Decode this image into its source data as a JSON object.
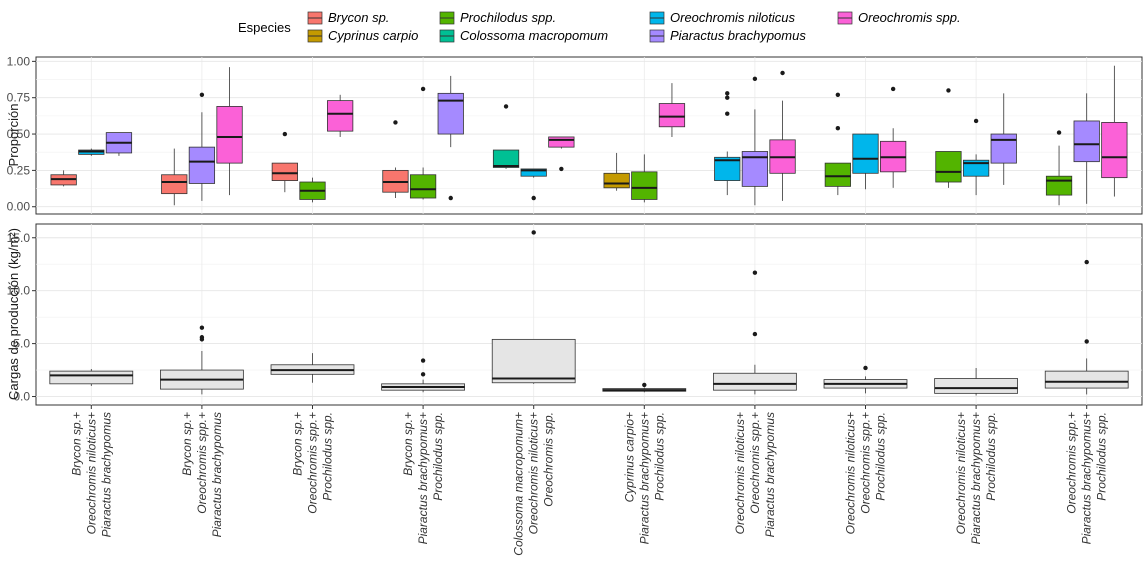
{
  "chart_data": [
    {
      "type": "boxplot",
      "panel": "top",
      "ylabel": "Proporción",
      "ylim": [
        0,
        1
      ],
      "yticks": [
        "0.00",
        "0.25",
        "0.50",
        "0.75",
        "1.00"
      ],
      "grid": true,
      "legend": {
        "title": "Especies",
        "placement": "top",
        "entries": [
          {
            "name": "Brycon sp.",
            "color": "#f8766d"
          },
          {
            "name": "Cyprinus carpio",
            "color": "#c49a00"
          },
          {
            "name": "Prochilodus spp.",
            "color": "#53b400"
          },
          {
            "name": "Colossoma macropomum",
            "color": "#00c094"
          },
          {
            "name": "Oreochromis niloticus",
            "color": "#00b6eb"
          },
          {
            "name": "Piaractus brachypomus",
            "color": "#a58aff"
          },
          {
            "name": "Oreochromis spp.",
            "color": "#fb61d7"
          }
        ]
      },
      "groups": [
        {
          "boxes": [
            {
              "species": 0,
              "stats": [
                0.14,
                0.15,
                0.19,
                0.22,
                0.25
              ],
              "outliers": []
            },
            {
              "species": 4,
              "stats": [
                0.35,
                0.36,
                0.38,
                0.39,
                0.4
              ],
              "outliers": []
            },
            {
              "species": 5,
              "stats": [
                0.35,
                0.37,
                0.44,
                0.51,
                0.51
              ],
              "outliers": []
            }
          ]
        },
        {
          "boxes": [
            {
              "species": 0,
              "stats": [
                0.01,
                0.09,
                0.17,
                0.22,
                0.4
              ],
              "outliers": []
            },
            {
              "species": 5,
              "stats": [
                0.04,
                0.16,
                0.31,
                0.41,
                0.65
              ],
              "outliers": [
                0.77
              ]
            },
            {
              "species": 6,
              "stats": [
                0.08,
                0.3,
                0.48,
                0.69,
                0.96
              ],
              "outliers": []
            }
          ]
        },
        {
          "boxes": [
            {
              "species": 0,
              "stats": [
                0.1,
                0.18,
                0.23,
                0.3,
                0.3
              ],
              "outliers": [
                0.5
              ]
            },
            {
              "species": 2,
              "stats": [
                0.03,
                0.05,
                0.11,
                0.17,
                0.2
              ],
              "outliers": []
            },
            {
              "species": 6,
              "stats": [
                0.48,
                0.52,
                0.64,
                0.73,
                0.77
              ],
              "outliers": []
            }
          ]
        },
        {
          "boxes": [
            {
              "species": 0,
              "stats": [
                0.06,
                0.1,
                0.17,
                0.25,
                0.27
              ],
              "outliers": [
                0.58
              ]
            },
            {
              "species": 2,
              "stats": [
                0.05,
                0.06,
                0.12,
                0.22,
                0.27
              ],
              "outliers": [
                0.81
              ]
            },
            {
              "species": 5,
              "stats": [
                0.41,
                0.5,
                0.73,
                0.78,
                0.9
              ],
              "outliers": [
                0.06
              ]
            }
          ]
        },
        {
          "boxes": [
            {
              "species": 3,
              "stats": [
                0.26,
                0.27,
                0.28,
                0.39,
                0.39
              ],
              "outliers": [
                0.69
              ]
            },
            {
              "species": 4,
              "stats": [
                0.2,
                0.21,
                0.25,
                0.26,
                0.26
              ],
              "outliers": [
                0.06
              ]
            },
            {
              "species": 6,
              "stats": [
                0.4,
                0.41,
                0.46,
                0.48,
                0.48
              ],
              "outliers": [
                0.26
              ]
            }
          ]
        },
        {
          "boxes": [
            {
              "species": 1,
              "stats": [
                0.11,
                0.13,
                0.16,
                0.23,
                0.37
              ],
              "outliers": []
            },
            {
              "species": 2,
              "stats": [
                0.03,
                0.05,
                0.13,
                0.24,
                0.36
              ],
              "outliers": []
            },
            {
              "species": 6,
              "stats": [
                0.48,
                0.55,
                0.62,
                0.71,
                0.85
              ],
              "outliers": []
            }
          ]
        },
        {
          "boxes": [
            {
              "species": 4,
              "stats": [
                0.08,
                0.18,
                0.32,
                0.34,
                0.38
              ],
              "outliers": [
                0.64,
                0.75,
                0.78
              ]
            },
            {
              "species": 5,
              "stats": [
                0.01,
                0.14,
                0.34,
                0.38,
                0.67
              ],
              "outliers": [
                0.88
              ]
            },
            {
              "species": 6,
              "stats": [
                0.04,
                0.23,
                0.34,
                0.46,
                0.73
              ],
              "outliers": [
                0.92
              ]
            }
          ]
        },
        {
          "boxes": [
            {
              "species": 2,
              "stats": [
                0.08,
                0.14,
                0.21,
                0.3,
                0.3
              ],
              "outliers": [
                0.54,
                0.77
              ]
            },
            {
              "species": 4,
              "stats": [
                0.12,
                0.23,
                0.33,
                0.5,
                0.5
              ],
              "outliers": []
            },
            {
              "species": 6,
              "stats": [
                0.13,
                0.24,
                0.34,
                0.45,
                0.54
              ],
              "outliers": [
                0.81
              ]
            }
          ]
        },
        {
          "boxes": [
            {
              "species": 2,
              "stats": [
                0.13,
                0.17,
                0.24,
                0.38,
                0.38
              ],
              "outliers": [
                0.8
              ]
            },
            {
              "species": 4,
              "stats": [
                0.08,
                0.21,
                0.3,
                0.32,
                0.36
              ],
              "outliers": [
                0.59
              ]
            },
            {
              "species": 5,
              "stats": [
                0.15,
                0.3,
                0.46,
                0.5,
                0.78
              ],
              "outliers": []
            }
          ]
        },
        {
          "boxes": [
            {
              "species": 2,
              "stats": [
                0.01,
                0.08,
                0.18,
                0.21,
                0.42
              ],
              "outliers": [
                0.51
              ]
            },
            {
              "species": 5,
              "stats": [
                0.02,
                0.31,
                0.43,
                0.59,
                0.78
              ],
              "outliers": []
            },
            {
              "species": 6,
              "stats": [
                0.07,
                0.2,
                0.34,
                0.58,
                0.97
              ],
              "outliers": []
            }
          ]
        }
      ]
    },
    {
      "type": "boxplot",
      "panel": "bottom",
      "ylabel": "Cargas de producción (kg/m²)",
      "ylim": [
        0,
        16
      ],
      "yticks": [
        "0.0",
        "5.0",
        "10.0",
        "15.0"
      ],
      "grid": true,
      "fill": "#e5e5e5",
      "categories": [
        [
          "Brycon sp.+",
          "Oreochromis niloticus+",
          "Piaractus brachypomus"
        ],
        [
          "Brycon sp.+",
          "Oreochromis spp.+",
          "Piaractus brachypomus"
        ],
        [
          "Brycon sp.+",
          "Oreochromis spp.+",
          "Prochilodus spp."
        ],
        [
          "Brycon sp.+",
          "Piaractus brachypomus+",
          "Prochilodus spp."
        ],
        [
          "Colossoma macropomum+",
          "Oreochromis niloticus+",
          "Oreochromis spp."
        ],
        [
          "Cyprinus carpio+",
          "Piaractus brachypomus+",
          "Prochilodus spp."
        ],
        [
          "Oreochromis niloticus+",
          "Oreochromis spp.+",
          "Piaractus brachypomus"
        ],
        [
          "Oreochromis niloticus+",
          "Oreochromis spp.+",
          "Prochilodus spp."
        ],
        [
          "Oreochromis niloticus+",
          "Piaractus brachypomus+",
          "Prochilodus spp."
        ],
        [
          "Oreochromis spp.+",
          "Piaractus brachypomus+",
          "Prochilodus spp."
        ]
      ],
      "boxes": [
        {
          "stats": [
            1.0,
            1.2,
            2.0,
            2.4,
            2.6
          ],
          "outliers": []
        },
        {
          "stats": [
            0.2,
            0.7,
            1.6,
            2.5,
            4.3
          ],
          "outliers": [
            5.4,
            5.6,
            6.5
          ]
        },
        {
          "stats": [
            1.3,
            2.1,
            2.5,
            3.0,
            4.1
          ],
          "outliers": []
        },
        {
          "stats": [
            0.4,
            0.6,
            0.9,
            1.2,
            1.6
          ],
          "outliers": [
            2.1,
            3.4
          ]
        },
        {
          "stats": [
            1.2,
            1.3,
            1.7,
            5.4,
            5.4
          ],
          "outliers": [
            15.5
          ]
        },
        {
          "stats": [
            0.4,
            0.5,
            0.6,
            0.75,
            0.85
          ],
          "outliers": [
            1.1
          ]
        },
        {
          "stats": [
            0.2,
            0.6,
            1.2,
            2.2,
            3.0
          ],
          "outliers": [
            5.9,
            11.7
          ]
        },
        {
          "stats": [
            0.3,
            0.8,
            1.2,
            1.6,
            1.9
          ],
          "outliers": [
            2.7
          ]
        },
        {
          "stats": [
            0.1,
            0.3,
            0.8,
            1.7,
            2.7
          ],
          "outliers": []
        },
        {
          "stats": [
            0.2,
            0.8,
            1.4,
            2.4,
            3.6
          ],
          "outliers": [
            5.2,
            12.7
          ]
        }
      ]
    }
  ]
}
